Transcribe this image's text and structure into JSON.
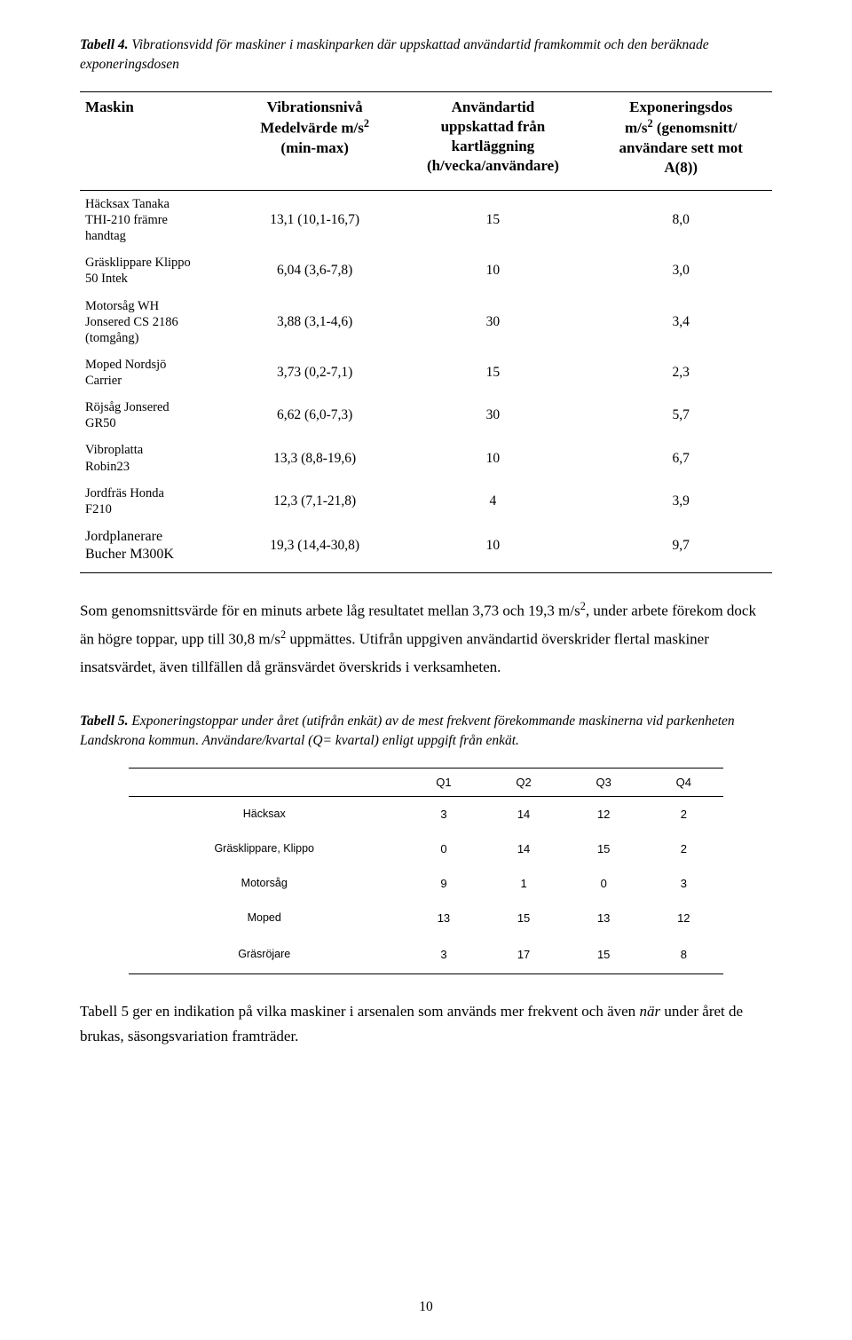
{
  "caption4": {
    "label": "Tabell 4.",
    "text": " Vibrationsvidd för maskiner i maskinparken där uppskattad användartid framkommit och den beräknade exponeringsdosen"
  },
  "table4": {
    "type": "table",
    "columns": [
      {
        "title_html": "Maskin",
        "align": "left"
      },
      {
        "title_html": "Vibrationsnivå<br>Medelvärde m/s<sup>2</sup><br>(min-max)",
        "align": "center"
      },
      {
        "title_html": "Användartid<br>uppskattad från<br>kartläggning<br>(h/vecka/användare)",
        "align": "center"
      },
      {
        "title_html": "Exponeringsdos<br>m/s<sup>2</sup> (genomsnitt/<br>användare sett mot<br>A(8))",
        "align": "center"
      }
    ],
    "rows": [
      {
        "label_html": "Häcksax Tanaka<br>THI-210 främre<br>handtag",
        "c1": "13,1 (10,1-16,7)",
        "c2": "15",
        "c3": "8,0"
      },
      {
        "label_html": "Gräsklippare Klippo<br>50 Intek",
        "c1": "6,04 (3,6-7,8)",
        "c2": "10",
        "c3": "3,0"
      },
      {
        "label_html": "Motorsåg WH<br>Jonsered CS 2186<br>(tomgång)",
        "c1": "3,88 (3,1-4,6)",
        "c2": "30",
        "c3": "3,4"
      },
      {
        "label_html": "Moped Nordsjö<br>Carrier",
        "c1": "3,73 (0,2-7,1)",
        "c2": "15",
        "c3": "2,3"
      },
      {
        "label_html": "Röjsåg Jonsered<br>GR50",
        "c1": "6,62 (6,0-7,3)",
        "c2": "30",
        "c3": "5,7"
      },
      {
        "label_html": "Vibroplatta<br>Robin23",
        "c1": "13,3 (8,8-19,6)",
        "c2": "10",
        "c3": "6,7"
      },
      {
        "label_html": "Jordfräs Honda<br>F210",
        "c1": "12,3 (7,1-21,8)",
        "c2": "4",
        "c3": "3,9"
      },
      {
        "label_html": "Jordplanerare<br>Bucher M300K",
        "c1": "19,3 (14,4-30,8)",
        "c2": "10",
        "c3": "9,7",
        "label_fontsize": "16px"
      }
    ]
  },
  "paragraph1_html": "Som genomsnittsvärde för en minuts arbete låg resultatet mellan 3,73 och 19,3 m/s<sup>2</sup>, under arbete förekom dock än högre toppar, upp till 30,8 m/s<sup>2</sup> uppmättes. Utifrån uppgiven användartid överskrider flertal maskiner insatsvärdet, även tillfällen då gränsvärdet överskrids i verksamheten.",
  "caption5": {
    "label": "Tabell 5.",
    "text_ital": " Exponeringstoppar under året (utifrån enkät) av de mest frekvent förekommande maskinerna vid parkenheten Landskrona kommun",
    "text_plain": ". ",
    "text_ital2": "Användare/kvartal (Q= kvartal) enligt uppgift från enkät."
  },
  "table5": {
    "type": "table",
    "columns": [
      "",
      "Q1",
      "Q2",
      "Q3",
      "Q4"
    ],
    "rows": [
      {
        "label": "Häcksax",
        "v": [
          "3",
          "14",
          "12",
          "2"
        ]
      },
      {
        "label": "Gräsklippare, Klippo",
        "v": [
          "0",
          "14",
          "15",
          "2"
        ]
      },
      {
        "label": "Motorsåg",
        "v": [
          "9",
          "1",
          "0",
          "3"
        ]
      },
      {
        "label": "Moped",
        "v": [
          "13",
          "15",
          "13",
          "12"
        ]
      },
      {
        "label": "Gräsröjare",
        "v": [
          "3",
          "17",
          "15",
          "8"
        ]
      }
    ]
  },
  "paragraph2": {
    "lead": "Tabell 5 ger en indikation på vilka maskiner i arsenalen som används mer frekvent och även ",
    "ital": "när",
    "tail": " under året de brukas, säsongsvariation framträder."
  },
  "page_number": "10",
  "colors": {
    "text": "#000000",
    "background": "#ffffff",
    "border": "#000000"
  }
}
